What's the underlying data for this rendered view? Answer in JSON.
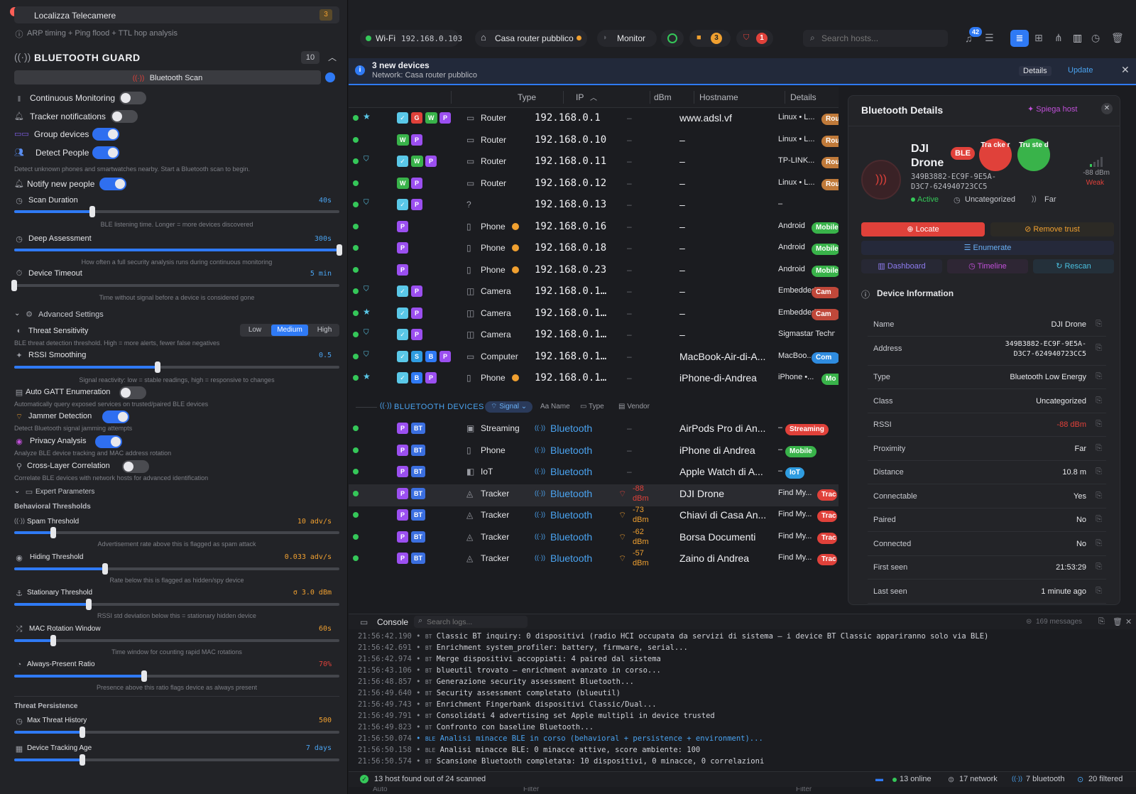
{
  "left": {
    "top_item": {
      "label": "Localizza Telecamere",
      "count": "3",
      "sub": "ARP timing + Ping flood + TTL hop analysis"
    },
    "title": "BLUETOOTH GUARD",
    "title_count": "10",
    "scan_button": "Bluetooth Scan",
    "toggles": [
      {
        "label": "Continuous Monitoring",
        "on": false,
        "icon": "waveform-icon"
      },
      {
        "label": "Tracker notifications",
        "on": false,
        "icon": "bell-icon"
      },
      {
        "label": "Group devices",
        "on": true,
        "icon": "group-icon"
      },
      {
        "label": "Detect People",
        "on": true,
        "icon": "people-icon"
      }
    ],
    "detect_people_sub": "Detect unknown phones and smartwatches nearby. Start a Bluetooth scan to begin.",
    "notify_new_people": "Notify new people",
    "scan_duration": {
      "label": "Scan Duration",
      "value": "40s",
      "level": 0.24,
      "sub": "BLE listening time. Longer = more devices discovered"
    },
    "deep_assessment": {
      "label": "Deep Assessment",
      "value": "300s",
      "level": 1.0,
      "sub": "How often a full security analysis runs during continuous monitoring"
    },
    "device_timeout": {
      "label": "Device Timeout",
      "value": "5 min",
      "level": 0.0,
      "sub": "Time without signal before a device is considered gone"
    },
    "advanced_settings": "Advanced Settings",
    "threat_sensitivity": {
      "label": "Threat Sensitivity",
      "options": [
        "Low",
        "Medium",
        "High"
      ],
      "selected": "Medium",
      "sub": "BLE threat detection threshold. High = more alerts, fewer false negatives"
    },
    "rssi_smoothing": {
      "label": "RSSI Smoothing",
      "value": "0.5",
      "level": 0.44,
      "sub": "Signal reactivity: low = stable readings, high = responsive to changes"
    },
    "auto_gatt": {
      "label": "Auto GATT Enumeration",
      "sub": "Automatically query exposed services on trusted/paired BLE devices",
      "on": false
    },
    "jammer": {
      "label": "Jammer Detection",
      "sub": "Detect Bluetooth signal jamming attempts",
      "on": true
    },
    "privacy": {
      "label": "Privacy Analysis",
      "sub": "Analyze BLE device tracking and MAC address rotation",
      "on": true
    },
    "cross_layer": {
      "label": "Cross-Layer Correlation",
      "sub": "Correlate BLE devices with network hosts for advanced identification",
      "on": false
    },
    "expert_parameters": "Expert Parameters",
    "behavioral_thresholds": "Behavioral Thresholds",
    "spam": {
      "label": "Spam Threshold",
      "value": "10 adv/s",
      "level": 0.12,
      "sub": "Advertisement rate above this is flagged as spam attack"
    },
    "hiding": {
      "label": "Hiding Threshold",
      "value": "0.033 adv/s",
      "level": 0.28,
      "sub": "Rate below this is flagged as hidden/spy device"
    },
    "stationary": {
      "label": "Stationary Threshold",
      "value": "σ 3.0 dBm",
      "level": 0.23,
      "sub": "RSSI std deviation below this = stationary hidden device"
    },
    "mac_rotation": {
      "label": "MAC Rotation Window",
      "value": "60s",
      "level": 0.12,
      "sub": "Time window for counting rapid MAC rotations"
    },
    "always_present": {
      "label": "Always-Present Ratio",
      "value": "70%",
      "level": 0.4,
      "sub": "Presence above this ratio flags device as always present"
    },
    "threat_persistence": "Threat Persistence",
    "max_threat": {
      "label": "Max Threat History",
      "value": "500",
      "level": 0.21
    },
    "tracking_age": {
      "label": "Device Tracking Age",
      "value": "7 days",
      "level": 0.21
    }
  },
  "topbar": {
    "wifi_label": "Wi-Fi",
    "wifi_ip": "192.168.0.103",
    "network": "Casa router pubblico",
    "monitor": "Monitor",
    "cam_count": "3",
    "alert_count": "1",
    "search_placeholder": "Search hosts...",
    "notif_count": "42"
  },
  "banner": {
    "title": "3 new devices",
    "sub": "Network: Casa router pubblico",
    "details": "Details",
    "update": "Update"
  },
  "table": {
    "headers": {
      "type": "Type",
      "ip": "IP",
      "dbm": "dBm",
      "hostname": "Hostname",
      "details": "Details"
    },
    "rows": [
      {
        "star": true,
        "shield": false,
        "badges": [
          "✓",
          "G",
          "W",
          "P"
        ],
        "type": "Router",
        "icon": "router-icon",
        "ip": "192.168.0.1",
        "dbm": "–",
        "host": "www.adsl.vf",
        "details": "Linux • L...",
        "pill": "Rou"
      },
      {
        "star": false,
        "shield": false,
        "badges": [
          "W",
          "P"
        ],
        "type": "Router",
        "icon": "router-icon",
        "ip": "192.168.0.10",
        "dbm": "–",
        "host": "–",
        "details": "Linux • L...",
        "pill": "Rou"
      },
      {
        "star": false,
        "shield": true,
        "badges": [
          "✓",
          "W",
          "P"
        ],
        "type": "Router",
        "icon": "router-icon",
        "ip": "192.168.0.11",
        "dbm": "–",
        "host": "–",
        "details": "TP-LINK...",
        "pill": "Rou"
      },
      {
        "star": false,
        "shield": false,
        "badges": [
          "W",
          "P"
        ],
        "type": "Router",
        "icon": "router-icon",
        "ip": "192.168.0.12",
        "dbm": "–",
        "host": "–",
        "details": "Linux • L...",
        "pill": "Rou"
      },
      {
        "star": false,
        "shield": true,
        "badges": [
          "✓",
          "P"
        ],
        "type": "",
        "icon": "unknown-icon",
        "ip": "192.168.0.13",
        "dbm": "–",
        "host": "–",
        "details": "–",
        "pill": ""
      },
      {
        "star": false,
        "shield": false,
        "badges": [
          "P"
        ],
        "type": "Phone",
        "icon": "phone-icon",
        "ip": "192.168.0.16",
        "dbm": "–",
        "host": "–",
        "details": "Android",
        "pill": "Mobile"
      },
      {
        "star": false,
        "shield": false,
        "badges": [
          "P"
        ],
        "type": "Phone",
        "icon": "phone-icon",
        "ip": "192.168.0.18",
        "dbm": "–",
        "host": "–",
        "details": "Android",
        "pill": "Mobile"
      },
      {
        "star": false,
        "shield": false,
        "badges": [
          "P"
        ],
        "type": "Phone",
        "icon": "phone-icon",
        "ip": "192.168.0.23",
        "dbm": "–",
        "host": "–",
        "details": "Android",
        "pill": "Mobile"
      },
      {
        "star": false,
        "shield": true,
        "badges": [
          "✓",
          "P"
        ],
        "type": "Camera",
        "icon": "camera-icon",
        "ip": "192.168.0.1…",
        "dbm": "–",
        "host": "–",
        "details": "Embedded",
        "pill": "Cam"
      },
      {
        "star": true,
        "shield": false,
        "badges": [
          "✓",
          "P"
        ],
        "type": "Camera",
        "icon": "camera-icon",
        "ip": "192.168.0.1…",
        "dbm": "–",
        "host": "–",
        "details": "Embedded",
        "pill": "Cam"
      },
      {
        "star": false,
        "shield": true,
        "badges": [
          "✓",
          "P"
        ],
        "type": "Camera",
        "icon": "camera-icon",
        "ip": "192.168.0.1…",
        "dbm": "–",
        "host": "–",
        "details": "Sigmastar Techn",
        "pill": ""
      },
      {
        "star": false,
        "shield": true,
        "badges": [
          "✓",
          "S",
          "B",
          "P"
        ],
        "type": "Computer",
        "icon": "computer-icon",
        "ip": "192.168.0.1…",
        "dbm": "–",
        "host": "MacBook-Air-di-A...",
        "details": "MacBoo...",
        "pill": "Com"
      },
      {
        "star": true,
        "shield": false,
        "badges": [
          "✓",
          "B",
          "P"
        ],
        "type": "Phone",
        "icon": "phone-icon",
        "ip": "192.168.0.1…",
        "dbm": "–",
        "host": "iPhone-di-Andrea",
        "details": "iPhone •...",
        "pill": "Mo"
      }
    ],
    "bt_section": {
      "label": "BLUETOOTH DEVICES",
      "signal": "Signal",
      "name": "Name",
      "type": "Type",
      "vendor": "Vendor"
    },
    "bt_rows": [
      {
        "type": "Streaming",
        "ip": "Bluetooth",
        "dbm": "–",
        "dbm2": "",
        "host": "AirPods Pro di An...",
        "details": "–",
        "pill": "Streaming",
        "pill_color": "#e0413a"
      },
      {
        "type": "Phone",
        "ip": "Bluetooth",
        "dbm": "–",
        "dbm2": "",
        "host": "iPhone di Andrea",
        "details": "–",
        "pill": "Mobile",
        "pill_color": "#39b34a"
      },
      {
        "type": "IoT",
        "ip": "Bluetooth",
        "dbm": "–",
        "dbm2": "",
        "host": "Apple Watch di A...",
        "details": "–",
        "pill": "IoT",
        "pill_color": "#2f9ce0"
      },
      {
        "type": "Tracker",
        "ip": "Bluetooth",
        "dbm": "-88",
        "dbm2": "dBm",
        "host": "DJI Drone",
        "details": "Find My...",
        "pill": "Trac",
        "pill_color": "#e0413a"
      },
      {
        "type": "Tracker",
        "ip": "Bluetooth",
        "dbm": "-73",
        "dbm2": "dBm",
        "host": "Chiavi di Casa An...",
        "details": "Find My...",
        "pill": "Trac",
        "pill_color": "#e0413a"
      },
      {
        "type": "Tracker",
        "ip": "Bluetooth",
        "dbm": "-62",
        "dbm2": "dBm",
        "host": "Borsa Documenti",
        "details": "Find My...",
        "pill": "Trac",
        "pill_color": "#e0413a"
      },
      {
        "type": "Tracker",
        "ip": "Bluetooth",
        "dbm": "-57",
        "dbm2": "dBm",
        "host": "Zaino di Andrea",
        "details": "Find My...",
        "pill": "Trac",
        "pill_color": "#e0413a"
      }
    ]
  },
  "details": {
    "title": "Bluetooth Details",
    "explain": "Spiega host",
    "name_line1": "DJI",
    "name_line2": "Drone",
    "ble": "BLE",
    "tracker_badge": "Tra cke r",
    "trusted_badge": "Tru ste d",
    "address_line1": "349B3882-EC9F-9E5A-",
    "address_line2": "D3C7-624940723CC5",
    "active": "Active",
    "category": "Uncategorized",
    "proximity": "Far",
    "signal_dbm": "-88 dBm",
    "signal_quality": "Weak",
    "locate": "Locate",
    "remove_trust": "Remove trust",
    "enumerate": "Enumerate",
    "dashboard": "Dashboard",
    "timeline": "Timeline",
    "rescan": "Rescan",
    "info_title": "Device Information",
    "info": [
      {
        "k": "Name",
        "v": "DJI Drone"
      },
      {
        "k": "Address",
        "v": "349B3882-EC9F-9E5A-",
        "v2": "D3C7-624940723CC5"
      },
      {
        "k": "Type",
        "v": "Bluetooth Low Energy"
      },
      {
        "k": "Class",
        "v": "Uncategorized"
      },
      {
        "k": "RSSI",
        "v": "-88 dBm"
      },
      {
        "k": "Proximity",
        "v": "Far"
      },
      {
        "k": "Distance",
        "v": "10.8 m"
      },
      {
        "k": "Connectable",
        "v": "Yes"
      },
      {
        "k": "Paired",
        "v": "No"
      },
      {
        "k": "Connected",
        "v": "No"
      },
      {
        "k": "First seen",
        "v": "21:53:29"
      },
      {
        "k": "Last seen",
        "v": "1 minute ago"
      }
    ]
  },
  "console": {
    "title": "Console",
    "search_placeholder": "Search logs...",
    "count": "169 messages",
    "lines": [
      {
        "t": "21:56:42.190",
        "src": "BT",
        "msg": "Classic BT inquiry: 0 dispositivi (radio HCI occupata da servizi di sistema — i device BT Classic appariranno solo via BLE)"
      },
      {
        "t": "21:56:42.691",
        "src": "BT",
        "msg": "Enrichment system_profiler: battery, firmware, serial..."
      },
      {
        "t": "21:56:42.974",
        "src": "BT",
        "msg": "Merge dispositivi accoppiati: 4 paired dal sistema"
      },
      {
        "t": "21:56:43.106",
        "src": "BT",
        "msg": "blueutil trovato — enrichment avanzato in corso..."
      },
      {
        "t": "21:56:48.857",
        "src": "BT",
        "msg": "Generazione security assessment Bluetooth..."
      },
      {
        "t": "21:56:49.640",
        "src": "BT",
        "msg": "Security assessment completato (blueutil)"
      },
      {
        "t": "21:56:49.743",
        "src": "BT",
        "msg": "Enrichment Fingerbank dispositivi Classic/Dual..."
      },
      {
        "t": "21:56:49.791",
        "src": "BT",
        "msg": "Consolidati 4 advertising set Apple multipli in device trusted"
      },
      {
        "t": "21:56:49.823",
        "src": "BT",
        "msg": "Confronto con baseline Bluetooth..."
      },
      {
        "t": "21:56:50.074",
        "src": "BLE",
        "msg": "Analisi minacce BLE in corso (behavioral + persistence + environment)...",
        "blue": true
      },
      {
        "t": "21:56:50.158",
        "src": "BLE",
        "msg": "Analisi minacce BLE: 0 minacce attive, score ambiente: 100"
      },
      {
        "t": "21:56:50.574",
        "src": "BT",
        "msg": "Scansione Bluetooth completata: 10 dispositivi, 0 minacce, 0 correlazioni"
      }
    ]
  },
  "status": {
    "found": "13 host found out of 24 scanned",
    "online": "13 online",
    "network": "17 network",
    "bluetooth": "7 bluetooth",
    "filtered": "20 filtered",
    "auto": "Auto",
    "filter1": "Filter",
    "filter2": "Filter"
  },
  "colors": {
    "accent": "#2f7af5",
    "danger": "#e0413a",
    "ok": "#35c759",
    "warn": "#f0a030"
  }
}
